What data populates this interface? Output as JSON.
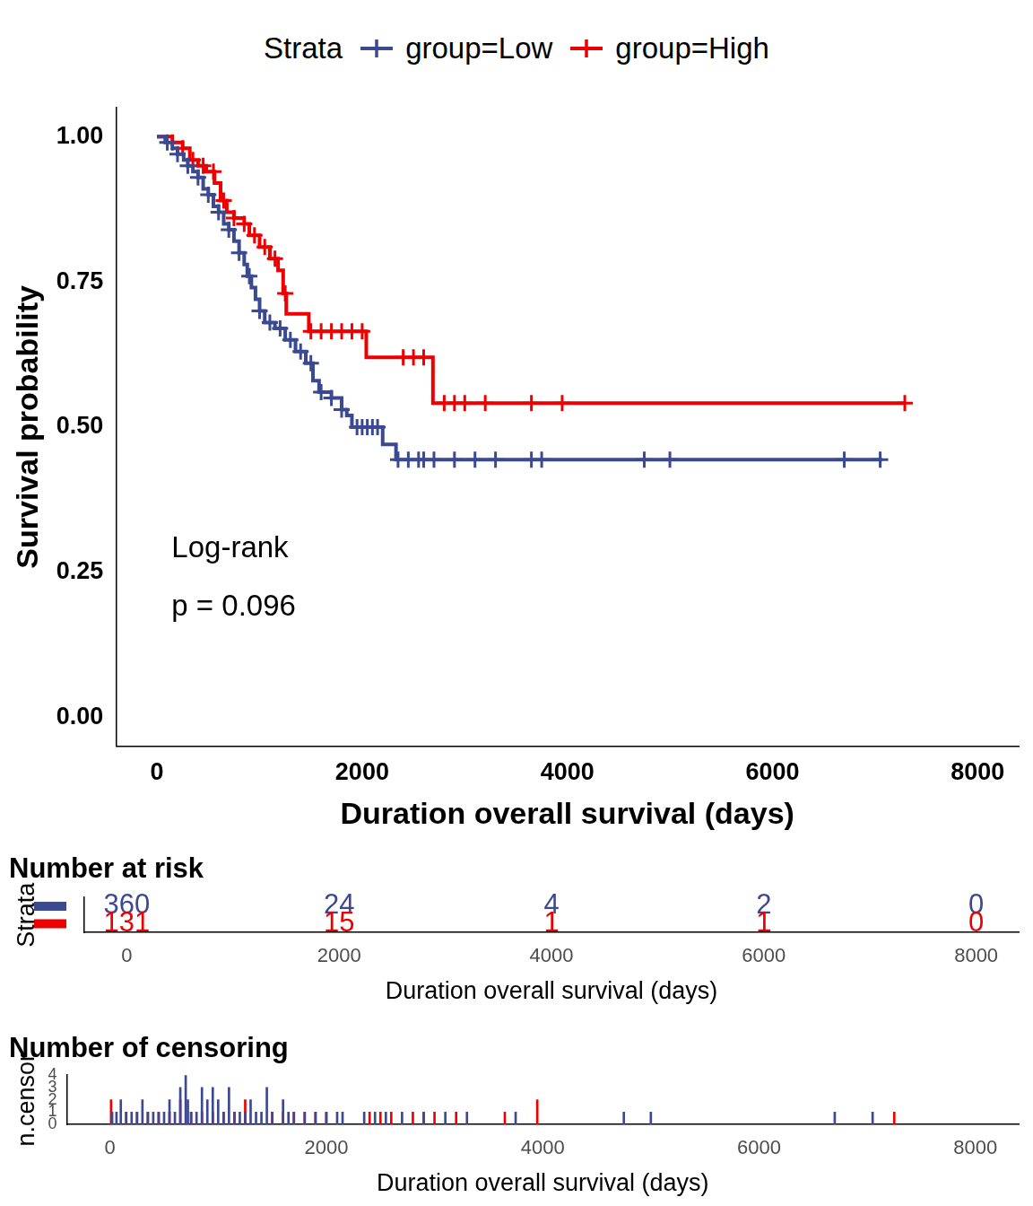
{
  "chart_data": [
    {
      "type": "step",
      "x_label": "Duration overall survival (days)",
      "y_label": "Survival probability",
      "legend": "top",
      "legend_title": "Strata",
      "annotations": [
        "Log-rank",
        "p = 0.096"
      ],
      "grid": false,
      "xlim": [
        -400,
        8400
      ],
      "xticks": [
        0,
        2000,
        4000,
        6000,
        8000
      ],
      "ylim": [
        -0.05,
        1.05
      ],
      "yticks": [
        {
          "value": 0,
          "label": "0.00"
        },
        {
          "value": 0.25,
          "label": "0.25"
        },
        {
          "value": 0.5,
          "label": "0.50"
        },
        {
          "value": 0.75,
          "label": "0.75"
        },
        {
          "value": 1,
          "label": "1.00"
        }
      ],
      "series": [
        {
          "name": "group=Low",
          "color": "#3B4992",
          "marker": "cross",
          "x": [
            0,
            80,
            150,
            200,
            260,
            300,
            350,
            400,
            450,
            500,
            550,
            600,
            650,
            700,
            750,
            800,
            850,
            880,
            920,
            960,
            1000,
            1050,
            1150,
            1250,
            1350,
            1450,
            1520,
            1580,
            1700,
            1800,
            1850,
            1900,
            2200,
            2330,
            7070
          ],
          "values": [
            1,
            0.99,
            0.98,
            0.97,
            0.96,
            0.95,
            0.94,
            0.93,
            0.91,
            0.9,
            0.88,
            0.87,
            0.85,
            0.84,
            0.82,
            0.8,
            0.78,
            0.76,
            0.74,
            0.72,
            0.7,
            0.68,
            0.67,
            0.65,
            0.63,
            0.61,
            0.58,
            0.56,
            0.55,
            0.53,
            0.52,
            0.5,
            0.47,
            0.444,
            0.444
          ],
          "censored": {
            "x": [
              100,
              200,
              300,
              400,
              500,
              600,
              700,
              800,
              900,
              1000,
              1100,
              1200,
              1300,
              1400,
              1500,
              1600,
              1700,
              1800,
              1950,
              2000,
              2050,
              2100,
              2150,
              2350,
              2450,
              2550,
              2600,
              2700,
              2900,
              3100,
              3300,
              3650,
              3750,
              4750,
              5000,
              6700,
              7050
            ],
            "values": [
              0.99,
              0.97,
              0.95,
              0.93,
              0.9,
              0.87,
              0.84,
              0.8,
              0.76,
              0.7,
              0.68,
              0.67,
              0.65,
              0.63,
              0.61,
              0.56,
              0.55,
              0.53,
              0.5,
              0.5,
              0.5,
              0.5,
              0.5,
              0.444,
              0.444,
              0.444,
              0.444,
              0.444,
              0.444,
              0.444,
              0.444,
              0.444,
              0.444,
              0.444,
              0.444,
              0.444,
              0.444
            ]
          }
        },
        {
          "name": "group=High",
          "color": "#EE0000",
          "marker": "cross",
          "x": [
            0,
            150,
            250,
            320,
            400,
            480,
            560,
            620,
            680,
            750,
            850,
            900,
            1000,
            1100,
            1180,
            1230,
            1260,
            1480,
            2040,
            2690,
            7290
          ],
          "values": [
            1,
            0.99,
            0.98,
            0.96,
            0.95,
            0.94,
            0.92,
            0.89,
            0.87,
            0.86,
            0.85,
            0.83,
            0.81,
            0.79,
            0.77,
            0.73,
            0.695,
            0.665,
            0.62,
            0.541,
            0.541
          ],
          "censored": {
            "x": [
              150,
              250,
              350,
              450,
              550,
              650,
              750,
              850,
              950,
              1050,
              1150,
              1250,
              1500,
              1600,
              1700,
              1800,
              1900,
              2000,
              2400,
              2500,
              2600,
              2800,
              2900,
              3000,
              3200,
              3650,
              3950,
              7290
            ],
            "values": [
              0.99,
              0.98,
              0.96,
              0.95,
              0.94,
              0.89,
              0.86,
              0.85,
              0.83,
              0.81,
              0.79,
              0.73,
              0.665,
              0.665,
              0.665,
              0.665,
              0.665,
              0.665,
              0.62,
              0.62,
              0.62,
              0.541,
              0.541,
              0.541,
              0.541,
              0.541,
              0.541,
              0.541
            ]
          }
        }
      ]
    },
    {
      "type": "table",
      "title": "Number at risk",
      "y_label": "Strata",
      "x_label": "Duration overall survival (days)",
      "xlim": [
        -400,
        8400
      ],
      "xticks": [
        0,
        2000,
        4000,
        6000,
        8000
      ],
      "x": [
        0,
        2000,
        4000,
        6000,
        8000
      ],
      "series": [
        {
          "color": "#3B4992",
          "values": [
            360,
            24,
            4,
            2,
            0
          ]
        },
        {
          "color": "#EE0000",
          "values": [
            131,
            15,
            1,
            1,
            0
          ]
        }
      ]
    },
    {
      "type": "bar",
      "title": "Number of censoring",
      "y_label": "n.censor",
      "x_label": "Duration overall survival (days)",
      "xlim": [
        -400,
        8400
      ],
      "xticks": [
        0,
        2000,
        4000,
        6000,
        8000
      ],
      "ylim": [
        0,
        4
      ],
      "yticks": [
        0,
        1,
        2,
        3,
        4
      ],
      "series": [
        {
          "color": "#3B4992",
          "x": [
            20,
            60,
            100,
            150,
            200,
            250,
            300,
            350,
            400,
            450,
            500,
            550,
            600,
            650,
            700,
            720,
            750,
            800,
            850,
            900,
            950,
            1000,
            1050,
            1100,
            1150,
            1200,
            1250,
            1300,
            1350,
            1400,
            1450,
            1500,
            1600,
            1650,
            1700,
            1800,
            1900,
            2000,
            2100,
            2150,
            2350,
            2450,
            2550,
            2700,
            2900,
            3100,
            3300,
            3750,
            4750,
            5000,
            6700,
            7050
          ],
          "values": [
            1,
            1,
            2,
            1,
            1,
            1,
            2,
            1,
            1,
            1,
            1,
            2,
            1,
            3,
            4,
            2,
            1,
            1,
            3,
            2,
            3,
            2,
            1,
            3,
            1,
            1,
            1,
            2,
            1,
            1,
            3,
            1,
            2,
            1,
            1,
            1,
            1,
            1,
            1,
            1,
            1,
            1,
            1,
            1,
            1,
            1,
            1,
            1,
            1,
            1,
            1,
            1
          ]
        },
        {
          "color": "#EE0000",
          "x": [
            10,
            150,
            250,
            350,
            450,
            550,
            650,
            750,
            850,
            950,
            1050,
            1150,
            1250,
            1500,
            1600,
            1700,
            1800,
            1900,
            2000,
            2400,
            2500,
            2600,
            2800,
            2900,
            3000,
            3200,
            3650,
            3950,
            7250
          ],
          "values": [
            2,
            1,
            1,
            1,
            1,
            1,
            2,
            1,
            1,
            1,
            1,
            1,
            2,
            1,
            1,
            1,
            1,
            1,
            1,
            1,
            1,
            1,
            1,
            1,
            1,
            1,
            1,
            2,
            1
          ]
        }
      ]
    }
  ]
}
